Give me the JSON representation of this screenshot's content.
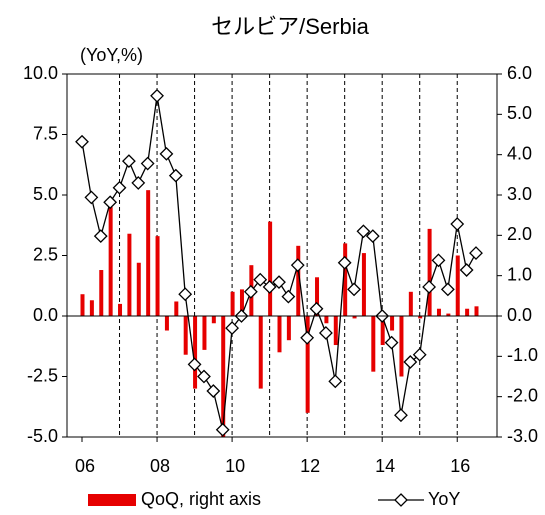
{
  "chart_data": {
    "type": "combo",
    "title": "セルビア/Serbia",
    "y_axis_label": "(YoY,%)",
    "categories": [
      "06",
      null,
      null,
      null,
      null,
      null,
      null,
      null,
      "08",
      null,
      null,
      null,
      null,
      null,
      null,
      null,
      "10",
      null,
      null,
      null,
      null,
      null,
      null,
      null,
      "12",
      null,
      null,
      null,
      null,
      null,
      null,
      null,
      "14",
      null,
      null,
      null,
      null,
      null,
      null,
      null,
      "16",
      null,
      null
    ],
    "series": [
      {
        "name": "QoQ, right axis",
        "type": "bar",
        "axis": "y2",
        "color": "#e60000",
        "values": [
          0.54,
          0.39,
          1.14,
          2.7,
          0.3,
          2.04,
          1.32,
          3.12,
          1.98,
          -0.36,
          0.36,
          -0.96,
          -1.8,
          -0.84,
          -0.18,
          -3.0,
          0.6,
          0.66,
          1.26,
          -1.8,
          2.34,
          -0.9,
          -0.6,
          1.74,
          -2.4,
          0.96,
          -0.18,
          -0.72,
          1.8,
          -0.06,
          1.56,
          -1.38,
          -0.72,
          -0.36,
          -1.5,
          0.6,
          -0.06,
          2.16,
          0.18,
          0.06,
          1.5,
          0.18,
          0.24
        ]
      },
      {
        "name": "YoY",
        "type": "line",
        "axis": "y",
        "color": "#000000",
        "marker": "diamond",
        "values": [
          7.2,
          4.9,
          3.3,
          4.7,
          5.3,
          6.4,
          5.5,
          6.3,
          9.1,
          6.7,
          5.8,
          0.9,
          -2.0,
          -2.5,
          -3.1,
          -4.7,
          -0.5,
          0.0,
          1.0,
          1.5,
          1.2,
          1.4,
          0.8,
          2.1,
          -0.9,
          0.3,
          -0.7,
          -2.7,
          2.2,
          1.1,
          3.5,
          3.3,
          0.0,
          -1.1,
          -4.1,
          -1.9,
          -1.6,
          1.2,
          2.3,
          1.1,
          3.8,
          1.9,
          2.6
        ]
      }
    ],
    "ylim": [
      -5,
      10
    ],
    "yticks": [
      {
        "value": -5,
        "label": "-5.0"
      },
      {
        "value": -2.5,
        "label": "-2.5"
      },
      {
        "value": 0,
        "label": "0.0"
      },
      {
        "value": 2.5,
        "label": "2.5"
      },
      {
        "value": 5,
        "label": "5.0"
      },
      {
        "value": 7.5,
        "label": "7.5"
      },
      {
        "value": 10,
        "label": "10.0"
      }
    ],
    "y2lim": [
      -3,
      6
    ],
    "y2ticks": [
      {
        "value": -3,
        "label": "-3.0"
      },
      {
        "value": -2,
        "label": "-2.0"
      },
      {
        "value": -1,
        "label": "-1.0"
      },
      {
        "value": 0,
        "label": "0.0"
      },
      {
        "value": 1,
        "label": "1.0"
      },
      {
        "value": 2,
        "label": "2.0"
      },
      {
        "value": 3,
        "label": "3.0"
      },
      {
        "value": 4,
        "label": "4.0"
      },
      {
        "value": 5,
        "label": "5.0"
      },
      {
        "value": 6,
        "label": "6.0"
      }
    ],
    "legend": "bottom"
  }
}
